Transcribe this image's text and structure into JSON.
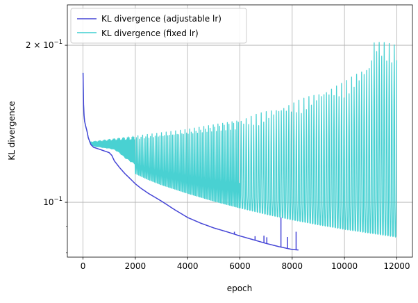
{
  "chart_data": {
    "type": "line",
    "xlabel": "epoch",
    "ylabel": "KL divergence",
    "xlim": [
      -600,
      12600
    ],
    "ylim": [
      0.0785,
      0.239
    ],
    "yscale": "log",
    "grid": true,
    "legend_position": "upper-left",
    "x_ticks": [
      {
        "value": 0,
        "label": "0"
      },
      {
        "value": 2000,
        "label": "2000"
      },
      {
        "value": 4000,
        "label": "4000"
      },
      {
        "value": 6000,
        "label": "6000"
      },
      {
        "value": 8000,
        "label": "8000"
      },
      {
        "value": 10000,
        "label": "10000"
      },
      {
        "value": 12000,
        "label": "12000"
      }
    ],
    "y_major_ticks": [
      {
        "value": 0.1,
        "label": "10",
        "exponent": "−1"
      },
      {
        "value": 0.2,
        "label": "2 × 10",
        "exponent": "−1"
      }
    ],
    "y_minor_ticks": [
      0.08,
      0.09
    ],
    "series": [
      {
        "name": "KL divergence (adjustable lr)",
        "color": "#4545d6",
        "x": [
          0,
          10,
          30,
          60,
          100,
          150,
          200,
          300,
          400,
          500,
          600,
          800,
          1000,
          1100,
          1200,
          1400,
          1600,
          1800,
          2000,
          2200,
          2500,
          3000,
          3500,
          4000,
          4500,
          5000,
          5500,
          6000,
          6500,
          7000,
          7500,
          8000,
          8250
        ],
        "y": [
          0.177,
          0.16,
          0.148,
          0.143,
          0.14,
          0.137,
          0.133,
          0.129,
          0.1275,
          0.127,
          0.1265,
          0.1255,
          0.1245,
          0.123,
          0.12,
          0.1165,
          0.1135,
          0.111,
          0.1085,
          0.1065,
          0.104,
          0.1005,
          0.0968,
          0.0935,
          0.0912,
          0.0893,
          0.0878,
          0.0862,
          0.0848,
          0.0834,
          0.0822,
          0.0812,
          0.081
        ],
        "spikes": [
          {
            "x": 5790,
            "y": 0.0878
          },
          {
            "x": 6580,
            "y": 0.0861
          },
          {
            "x": 6920,
            "y": 0.0863
          },
          {
            "x": 7030,
            "y": 0.0857
          },
          {
            "x": 7570,
            "y": 0.0935
          },
          {
            "x": 7820,
            "y": 0.0858
          },
          {
            "x": 8150,
            "y": 0.0878
          }
        ]
      },
      {
        "name": "KL divergence (fixed lr)",
        "color": "#3fcfd0",
        "x": [
          0,
          10,
          30,
          60,
          100,
          150,
          200,
          300,
          400,
          500,
          600,
          800,
          1000,
          1200,
          1400,
          1600,
          1800,
          2000,
          2500,
          3000,
          4000,
          5000,
          6000,
          7000,
          8000,
          9000,
          10000,
          11000,
          12000
        ],
        "y": [
          0.177,
          0.16,
          0.148,
          0.143,
          0.14,
          0.137,
          0.133,
          0.129,
          0.1275,
          0.127,
          0.1268,
          0.126,
          0.1255,
          0.1245,
          0.122,
          0.1185,
          0.116,
          0.1135,
          0.1105,
          0.108,
          0.104,
          0.1005,
          0.0975,
          0.0948,
          0.0925,
          0.0905,
          0.0887,
          0.0872,
          0.0857
        ],
        "spike_peaks_x": [
          0,
          2000,
          4000,
          6000,
          8000,
          10000,
          11000,
          11100,
          12000
        ],
        "spike_peaks_y": [
          0.13,
          0.134,
          0.138,
          0.144,
          0.155,
          0.17,
          0.185,
          0.205,
          0.2
        ]
      }
    ]
  }
}
